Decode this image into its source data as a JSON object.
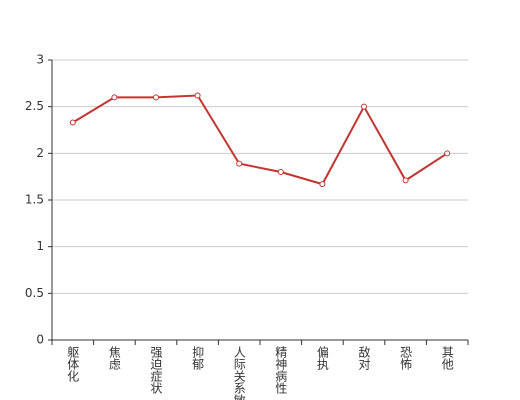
{
  "chart_data": {
    "type": "line",
    "categories": [
      "躯体化",
      "焦虑",
      "强迫症状",
      "抑郁",
      "人际关系敏感",
      "精神病性",
      "偏执",
      "敌对",
      "恐怖",
      "其他"
    ],
    "values": [
      2.33,
      2.6,
      2.6,
      2.62,
      1.89,
      1.8,
      1.67,
      2.5,
      1.71,
      2.0
    ],
    "color": "#c23531",
    "ylim": [
      0,
      3
    ],
    "yticks": [
      0,
      0.5,
      1,
      1.5,
      2,
      2.5,
      3
    ],
    "grid": true
  }
}
